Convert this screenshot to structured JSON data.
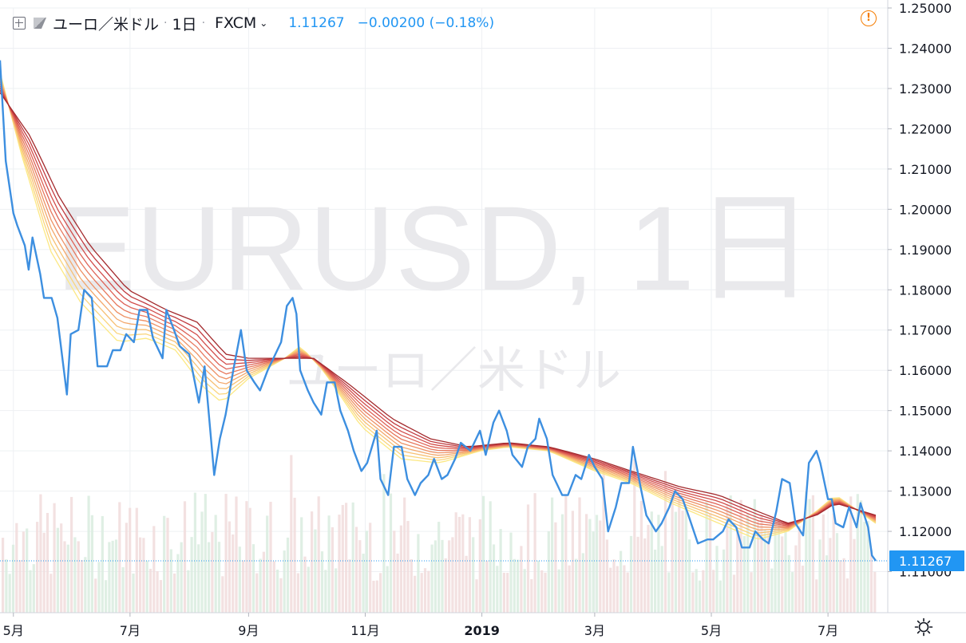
{
  "header": {
    "pair_name": "ユーロ／米ドル",
    "interval": "1日",
    "exchange": "FXCM",
    "last_price": "1.11267",
    "change": "−0.00200 (−0.18%)",
    "icons": [
      "add-symbol-icon",
      "flag-icon",
      "chevron-down-icon",
      "alert-icon",
      "settings-icon"
    ]
  },
  "watermark": {
    "title": "EURUSD, 1日",
    "subtitle": "ユーロ／米ドル"
  },
  "colors": {
    "price_line": "#3d8fe0",
    "ribbon": [
      "#fce883",
      "#fad57c",
      "#f7c074",
      "#f3a86c",
      "#ee9165",
      "#e7795e",
      "#de6256",
      "#d24d4b",
      "#c13a3f",
      "#a32a2d"
    ],
    "volume_up": "#d9ecdf",
    "volume_down": "#f1dcdc",
    "price_label_bg": "#2196f3",
    "grid": "#eef0f3"
  },
  "chart_data": {
    "type": "line",
    "title": "EURUSD, 1日",
    "ylim": [
      1.1,
      1.25
    ],
    "y_ticks": [
      "1.25000",
      "1.24000",
      "1.23000",
      "1.22000",
      "1.21000",
      "1.20000",
      "1.19000",
      "1.18000",
      "1.17000",
      "1.16000",
      "1.15000",
      "1.14000",
      "1.13000",
      "1.12000",
      "1.11000"
    ],
    "x_ticks": [
      "5月",
      "7月",
      "9月",
      "11月",
      "2019",
      "3月",
      "5月",
      "7月"
    ],
    "x_range": [
      "2018-04-24",
      "2019-07-26"
    ],
    "last_value": 1.11267,
    "last_label": "1.11267",
    "price_series": {
      "name": "EURUSD",
      "points": [
        [
          "2018-04-24",
          1.237
        ],
        [
          "2018-04-27",
          1.212
        ],
        [
          "2018-05-01",
          1.199
        ],
        [
          "2018-05-03",
          1.196
        ],
        [
          "2018-05-07",
          1.191
        ],
        [
          "2018-05-09",
          1.185
        ],
        [
          "2018-05-11",
          1.193
        ],
        [
          "2018-05-15",
          1.184
        ],
        [
          "2018-05-17",
          1.178
        ],
        [
          "2018-05-21",
          1.178
        ],
        [
          "2018-05-24",
          1.173
        ],
        [
          "2018-05-29",
          1.154
        ],
        [
          "2018-05-31",
          1.169
        ],
        [
          "2018-06-04",
          1.17
        ],
        [
          "2018-06-07",
          1.18
        ],
        [
          "2018-06-11",
          1.178
        ],
        [
          "2018-06-14",
          1.161
        ],
        [
          "2018-06-19",
          1.161
        ],
        [
          "2018-06-22",
          1.165
        ],
        [
          "2018-06-26",
          1.165
        ],
        [
          "2018-06-29",
          1.169
        ],
        [
          "2018-07-03",
          1.167
        ],
        [
          "2018-07-06",
          1.175
        ],
        [
          "2018-07-10",
          1.175
        ],
        [
          "2018-07-13",
          1.168
        ],
        [
          "2018-07-18",
          1.163
        ],
        [
          "2018-07-20",
          1.175
        ],
        [
          "2018-07-24",
          1.17
        ],
        [
          "2018-07-27",
          1.166
        ],
        [
          "2018-08-01",
          1.164
        ],
        [
          "2018-08-06",
          1.152
        ],
        [
          "2018-08-09",
          1.161
        ],
        [
          "2018-08-14",
          1.134
        ],
        [
          "2018-08-17",
          1.143
        ],
        [
          "2018-08-20",
          1.149
        ],
        [
          "2018-08-24",
          1.16
        ],
        [
          "2018-08-28",
          1.17
        ],
        [
          "2018-08-31",
          1.16
        ],
        [
          "2018-09-04",
          1.157
        ],
        [
          "2018-09-07",
          1.155
        ],
        [
          "2018-09-11",
          1.16
        ],
        [
          "2018-09-14",
          1.163
        ],
        [
          "2018-09-18",
          1.167
        ],
        [
          "2018-09-21",
          1.176
        ],
        [
          "2018-09-24",
          1.178
        ],
        [
          "2018-09-26",
          1.174
        ],
        [
          "2018-09-28",
          1.16
        ],
        [
          "2018-10-02",
          1.155
        ],
        [
          "2018-10-05",
          1.152
        ],
        [
          "2018-10-09",
          1.149
        ],
        [
          "2018-10-12",
          1.157
        ],
        [
          "2018-10-16",
          1.157
        ],
        [
          "2018-10-19",
          1.15
        ],
        [
          "2018-10-23",
          1.145
        ],
        [
          "2018-10-26",
          1.14
        ],
        [
          "2018-10-30",
          1.135
        ],
        [
          "2018-11-02",
          1.137
        ],
        [
          "2018-11-07",
          1.145
        ],
        [
          "2018-11-09",
          1.133
        ],
        [
          "2018-11-13",
          1.129
        ],
        [
          "2018-11-16",
          1.141
        ],
        [
          "2018-11-20",
          1.141
        ],
        [
          "2018-11-23",
          1.133
        ],
        [
          "2018-11-27",
          1.129
        ],
        [
          "2018-11-30",
          1.132
        ],
        [
          "2018-12-04",
          1.134
        ],
        [
          "2018-12-07",
          1.138
        ],
        [
          "2018-12-11",
          1.133
        ],
        [
          "2018-12-14",
          1.134
        ],
        [
          "2018-12-18",
          1.138
        ],
        [
          "2018-12-21",
          1.142
        ],
        [
          "2018-12-26",
          1.14
        ],
        [
          "2018-12-31",
          1.145
        ],
        [
          "2019-01-03",
          1.139
        ],
        [
          "2019-01-07",
          1.147
        ],
        [
          "2019-01-10",
          1.15
        ],
        [
          "2019-01-14",
          1.145
        ],
        [
          "2019-01-17",
          1.139
        ],
        [
          "2019-01-22",
          1.136
        ],
        [
          "2019-01-25",
          1.141
        ],
        [
          "2019-01-29",
          1.143
        ],
        [
          "2019-01-31",
          1.148
        ],
        [
          "2019-02-04",
          1.143
        ],
        [
          "2019-02-07",
          1.134
        ],
        [
          "2019-02-12",
          1.129
        ],
        [
          "2019-02-15",
          1.129
        ],
        [
          "2019-02-19",
          1.134
        ],
        [
          "2019-02-22",
          1.133
        ],
        [
          "2019-02-26",
          1.139
        ],
        [
          "2019-03-01",
          1.136
        ],
        [
          "2019-03-05",
          1.133
        ],
        [
          "2019-03-08",
          1.12
        ],
        [
          "2019-03-12",
          1.126
        ],
        [
          "2019-03-15",
          1.132
        ],
        [
          "2019-03-19",
          1.132
        ],
        [
          "2019-03-21",
          1.141
        ],
        [
          "2019-03-25",
          1.131
        ],
        [
          "2019-03-28",
          1.124
        ],
        [
          "2019-04-02",
          1.12
        ],
        [
          "2019-04-05",
          1.122
        ],
        [
          "2019-04-09",
          1.126
        ],
        [
          "2019-04-12",
          1.13
        ],
        [
          "2019-04-16",
          1.128
        ],
        [
          "2019-04-19",
          1.124
        ],
        [
          "2019-04-24",
          1.117
        ],
        [
          "2019-04-29",
          1.118
        ],
        [
          "2019-05-02",
          1.118
        ],
        [
          "2019-05-07",
          1.12
        ],
        [
          "2019-05-10",
          1.123
        ],
        [
          "2019-05-14",
          1.121
        ],
        [
          "2019-05-17",
          1.116
        ],
        [
          "2019-05-21",
          1.116
        ],
        [
          "2019-05-24",
          1.12
        ],
        [
          "2019-05-28",
          1.118
        ],
        [
          "2019-05-31",
          1.117
        ],
        [
          "2019-06-04",
          1.125
        ],
        [
          "2019-06-07",
          1.133
        ],
        [
          "2019-06-11",
          1.132
        ],
        [
          "2019-06-14",
          1.122
        ],
        [
          "2019-06-18",
          1.119
        ],
        [
          "2019-06-21",
          1.137
        ],
        [
          "2019-06-25",
          1.14
        ],
        [
          "2019-06-27",
          1.137
        ],
        [
          "2019-07-01",
          1.128
        ],
        [
          "2019-07-03",
          1.128
        ],
        [
          "2019-07-05",
          1.122
        ],
        [
          "2019-07-09",
          1.121
        ],
        [
          "2019-07-12",
          1.126
        ],
        [
          "2019-07-16",
          1.121
        ],
        [
          "2019-07-18",
          1.127
        ],
        [
          "2019-07-22",
          1.121
        ],
        [
          "2019-07-24",
          1.114
        ],
        [
          "2019-07-26",
          1.1127
        ]
      ]
    },
    "ribbon": {
      "description_terms": "moving-average ribbon, 10 bands",
      "upper_band": [
        [
          "2018-04-24",
          1.229
        ],
        [
          "2018-05-10",
          1.218
        ],
        [
          "2018-05-25",
          1.203
        ],
        [
          "2018-06-10",
          1.191
        ],
        [
          "2018-06-30",
          1.18
        ],
        [
          "2018-07-20",
          1.175
        ],
        [
          "2018-08-05",
          1.172
        ],
        [
          "2018-08-20",
          1.164
        ],
        [
          "2018-09-01",
          1.163
        ],
        [
          "2018-09-20",
          1.163
        ],
        [
          "2018-10-05",
          1.163
        ],
        [
          "2018-10-25",
          1.156
        ],
        [
          "2018-11-15",
          1.148
        ],
        [
          "2018-12-05",
          1.143
        ],
        [
          "2018-12-25",
          1.141
        ],
        [
          "2019-01-15",
          1.142
        ],
        [
          "2019-02-05",
          1.141
        ],
        [
          "2019-03-01",
          1.138
        ],
        [
          "2019-03-20",
          1.135
        ],
        [
          "2019-04-15",
          1.131
        ],
        [
          "2019-05-05",
          1.129
        ],
        [
          "2019-05-25",
          1.125
        ],
        [
          "2019-06-10",
          1.122
        ],
        [
          "2019-06-25",
          1.124
        ],
        [
          "2019-07-05",
          1.127
        ],
        [
          "2019-07-26",
          1.124
        ]
      ],
      "lower_band": [
        [
          "2018-04-24",
          1.234
        ],
        [
          "2018-05-05",
          1.214
        ],
        [
          "2018-05-20",
          1.19
        ],
        [
          "2018-06-05",
          1.177
        ],
        [
          "2018-06-25",
          1.167
        ],
        [
          "2018-07-10",
          1.168
        ],
        [
          "2018-07-25",
          1.165
        ],
        [
          "2018-08-08",
          1.156
        ],
        [
          "2018-08-18",
          1.152
        ],
        [
          "2018-09-01",
          1.158
        ],
        [
          "2018-09-20",
          1.163
        ],
        [
          "2018-09-28",
          1.166
        ],
        [
          "2018-10-10",
          1.16
        ],
        [
          "2018-10-30",
          1.146
        ],
        [
          "2018-11-20",
          1.138
        ],
        [
          "2018-12-10",
          1.137
        ],
        [
          "2018-12-31",
          1.14
        ],
        [
          "2019-01-15",
          1.141
        ],
        [
          "2019-02-05",
          1.14
        ],
        [
          "2019-03-01",
          1.135
        ],
        [
          "2019-03-20",
          1.132
        ],
        [
          "2019-04-10",
          1.127
        ],
        [
          "2019-05-05",
          1.122
        ],
        [
          "2019-05-25",
          1.118
        ],
        [
          "2019-06-10",
          1.12
        ],
        [
          "2019-06-25",
          1.125
        ],
        [
          "2019-07-05",
          1.129
        ],
        [
          "2019-07-26",
          1.122
        ]
      ]
    },
    "grid": true
  }
}
